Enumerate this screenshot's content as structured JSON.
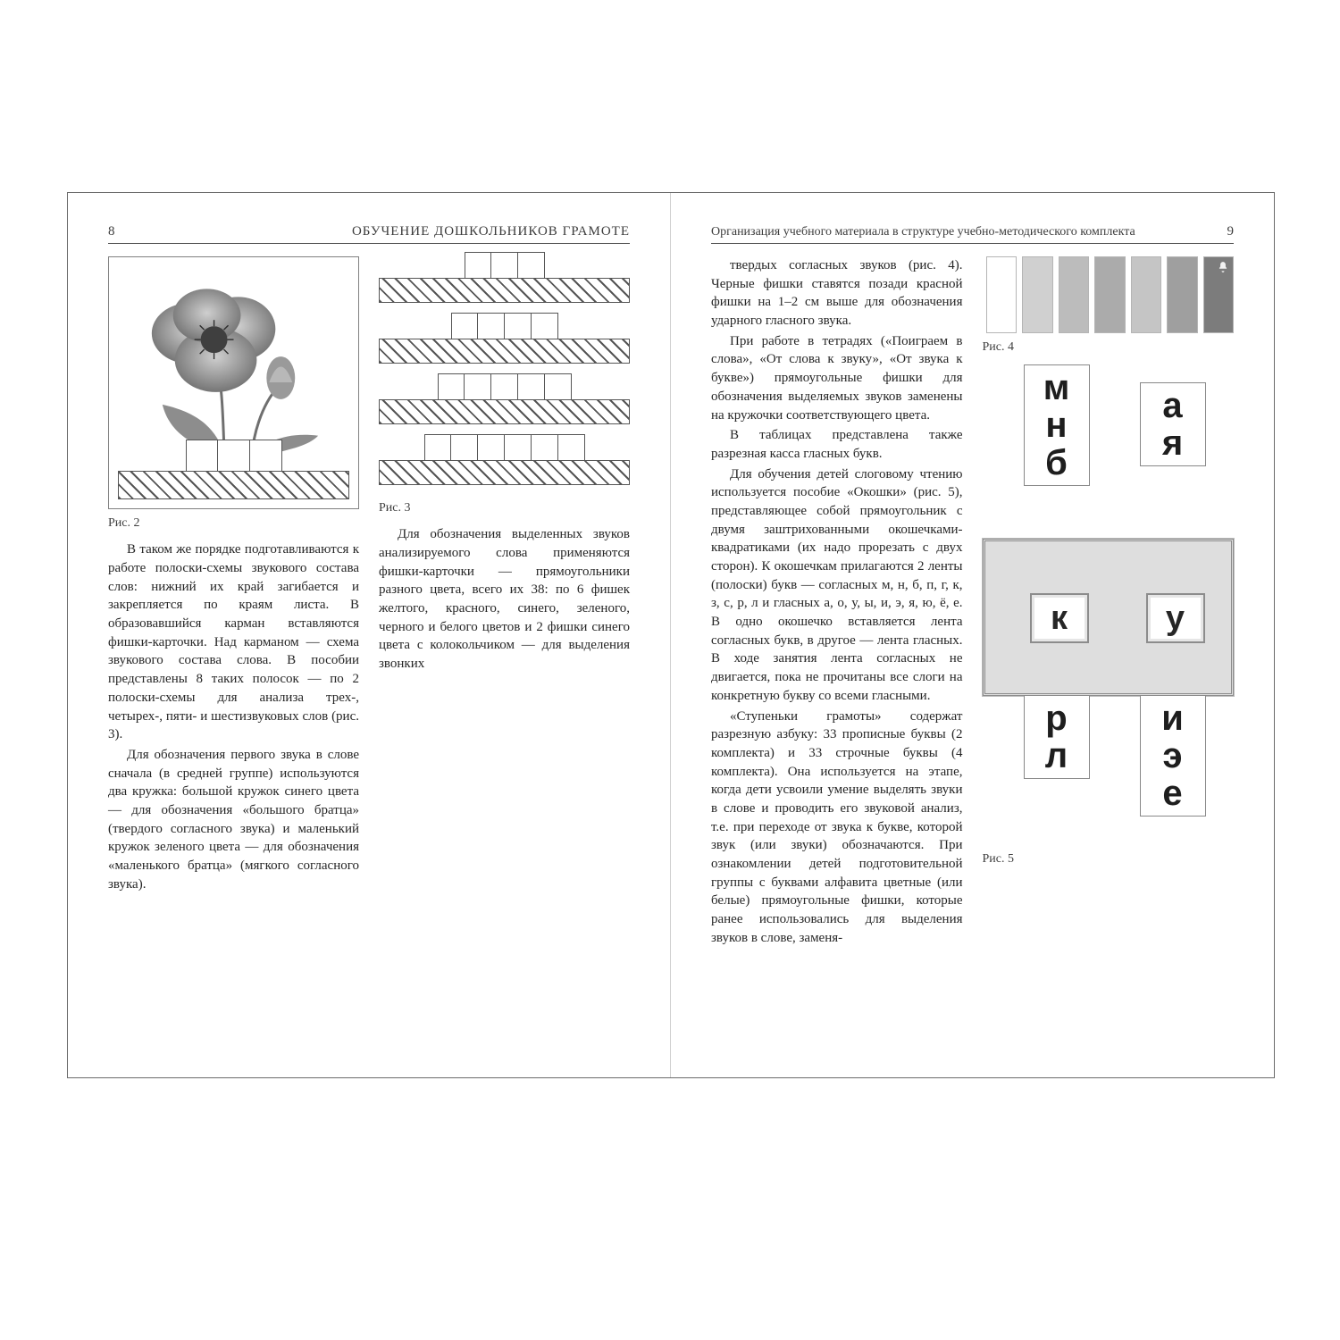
{
  "left": {
    "page_number": "8",
    "running_title": "ОБУЧЕНИЕ ДОШКОЛЬНИКОВ ГРАМОТЕ",
    "fig2_caption": "Рис. 2",
    "fig3_caption": "Рис. 3",
    "col1_p1": "В таком же порядке подготавливаются к работе полоски-схемы звукового состава слов: нижний их край загибается и закрепляется по краям листа. В образовавшийся карман вставляются фишки-карточки. Над карманом — схема звукового состава слова. В пособии представлены 8 таких полосок — по 2 полоски-схемы для анализа трех-, четырех-, пяти- и шестизвуковых слов (рис. 3).",
    "col1_p2": "Для обозначения первого звука в слове сначала (в средней группе) используются два кружка: большой кружок синего цвета — для обозначения «большого братца» (твердого согласного звука) и маленький кружок зеленого цвета — для обозначения «маленького братца» (мягкого согласного звука).",
    "col2_p1": "Для обозначения выделенных звуков анализируемого слова применяются фишки-карточки — прямоугольники разного цвета, всего их 38: по 6 фишек желтого, красного, синего, зеленого, черного и белого цветов и 2 фишки синего цвета с колокольчиком — для выделения звонких",
    "fig3_strips": [
      3,
      4,
      5,
      6
    ],
    "fig2_boxes": 3
  },
  "right": {
    "page_number": "9",
    "running_title": "Организация учебного материала в структуре учебно-методического комплекта",
    "fig4_caption": "Рис. 4",
    "fig5_caption": "Рис. 5",
    "p1": "твердых согласных звуков (рис. 4). Черные фишки ставятся позади красной фишки на 1–2 см выше для обозначения ударного гласного звука.",
    "p2": "При работе в тетрадях («Поиграем в слова», «От слова к звуку», «От звука к букве») прямоугольные фишки для обозначения выделяемых звуков заменены на кружочки соответствующего цвета.",
    "p3": "В таблицах представлена также разрезная касса гласных букв.",
    "p4": "Для обучения детей слоговому чтению используется пособие «Окошки» (рис. 5), представляющее собой прямоугольник с двумя заштрихованными окошечками-квадратиками (их надо прорезать с двух сторон). К окошечкам прилагаются 2 ленты (полоски) букв — согласных м, н, б, п, г, к, з, с, р, л и гласных а, о, у, ы, и, э, я, ю, ё, е. В одно окошечко вставляется лента согласных букв, в другое — лента гласных. В ходе занятия лента согласных не двигается, пока не прочитаны все слоги на конкретную букву со всеми гласными.",
    "p5": "«Ступеньки грамоты» содержат разрезную азбуку: 33 прописные буквы (2 комплекта) и 33 строчные буквы (4 комплекта). Она используется на этапе, когда дети усвоили умение выделять звуки в слове и проводить его звуковой анализ, т.е. при переходе от звука к букве, которой звук (или звуки) обозначаются. При ознакомлении детей подготовительной группы с буквами алфавита цветные (или белые) прямоугольные фишки, которые ранее использовались для выделения звуков в слове, заменя-",
    "fig4_colors": [
      "#ffffff",
      "#d0d0d0",
      "#bcbcbc",
      "#ababab",
      "#c5c5c5",
      "#9f9f9f",
      "#7c7c7c"
    ],
    "tape_left_top": [
      "м",
      "н",
      "б"
    ],
    "tape_left_bottom": [
      "р",
      "л"
    ],
    "tape_right_top": [
      "а",
      "я"
    ],
    "tape_right_bottom": [
      "и",
      "э",
      "е"
    ],
    "window_left": "к",
    "window_right": "у"
  }
}
